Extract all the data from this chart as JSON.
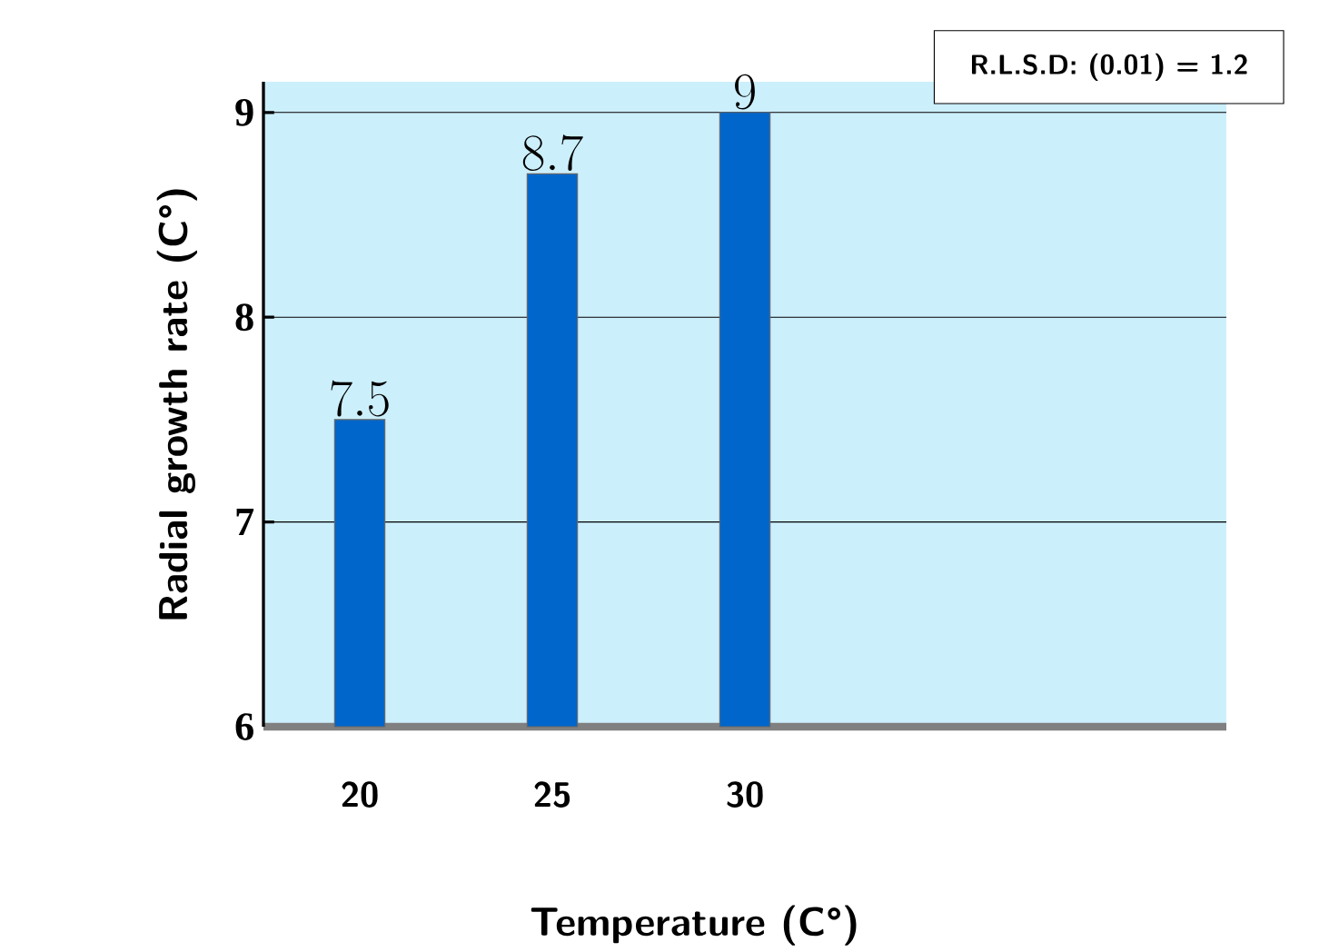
{
  "chart_data": {
    "type": "bar",
    "xlabel": "Temperature (C°)",
    "ylabel": "Radial growth rate (C°)",
    "categories": [
      "20",
      "25",
      "30",
      null,
      null
    ],
    "values": [
      7.5,
      8.7,
      9,
      null,
      null
    ],
    "color": "#0066cc",
    "ylim": [
      6,
      9.15
    ],
    "yticks": [
      6,
      7,
      8,
      9
    ],
    "grid": "y",
    "data_labels": true,
    "annotations": [
      "R.L.S.D: (0.01) = 1.2"
    ]
  }
}
